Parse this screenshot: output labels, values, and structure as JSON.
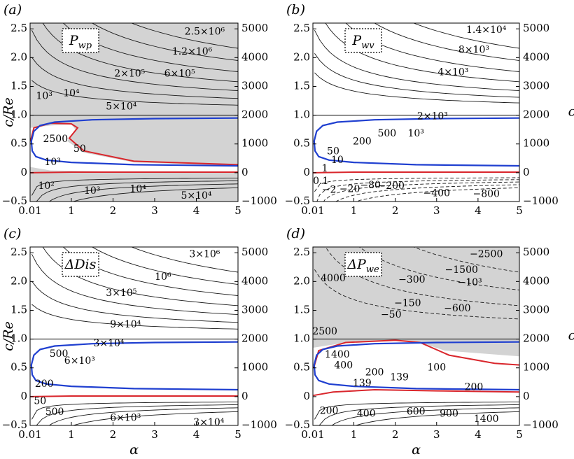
{
  "chart_data": [
    {
      "type": "contour",
      "panel_label": "(a)",
      "field_label": "P_wp",
      "field_symbol": "P",
      "field_sub": "wp",
      "shaded_background": true,
      "xlabel": "",
      "ylabel": "c/Re",
      "ylabel_right": "",
      "xlim": [
        0.01,
        5
      ],
      "ylim": [
        -0.5,
        2.6
      ],
      "x_ticks": [
        "0.01",
        "1",
        "2",
        "3",
        "4",
        "5"
      ],
      "y_ticks": [
        "−0.5",
        "0",
        "0.5",
        "1.0",
        "1.5",
        "2.0",
        "2.5"
      ],
      "y_ticks_right": [
        "−1000",
        "0",
        "1000",
        "2000",
        "3000",
        "4000",
        "5000"
      ],
      "contour_labels": [
        {
          "text": "2.5×10⁶",
          "x": 4.2,
          "y": 2.45
        },
        {
          "text": "1.2×10⁶",
          "x": 3.9,
          "y": 2.1
        },
        {
          "text": "6×10⁵",
          "x": 3.6,
          "y": 1.72
        },
        {
          "text": "2×10⁵",
          "x": 2.4,
          "y": 1.72
        },
        {
          "text": "5×10⁴",
          "x": 2.2,
          "y": 1.15
        },
        {
          "text": "10⁴",
          "x": 1.0,
          "y": 1.38
        },
        {
          "text": "10³",
          "x": 0.35,
          "y": 1.33
        },
        {
          "text": "2500",
          "x": 0.62,
          "y": 0.58
        },
        {
          "text": "50",
          "x": 1.2,
          "y": 0.41
        },
        {
          "text": "10³",
          "x": 0.55,
          "y": 0.18
        },
        {
          "text": "10²",
          "x": 0.4,
          "y": -0.23
        },
        {
          "text": "10³",
          "x": 1.5,
          "y": -0.32
        },
        {
          "text": "10⁴",
          "x": 2.6,
          "y": -0.29
        },
        {
          "text": "5×10⁴",
          "x": 4.0,
          "y": -0.4
        }
      ]
    },
    {
      "type": "contour",
      "panel_label": "(b)",
      "field_label": "P_wv",
      "field_symbol": "P",
      "field_sub": "wv",
      "shaded_background": false,
      "xlabel": "",
      "ylabel": "",
      "ylabel_right": "c",
      "xlim": [
        0.01,
        5
      ],
      "ylim": [
        -0.5,
        2.6
      ],
      "x_ticks": [
        "0.01",
        "1",
        "2",
        "3",
        "4",
        "5"
      ],
      "y_ticks": [
        "−0.5",
        "0",
        "0.5",
        "1.0",
        "1.5",
        "2.0",
        "2.5"
      ],
      "y_ticks_right": [
        "−1000",
        "0",
        "1000",
        "2000",
        "3000",
        "4000",
        "5000"
      ],
      "contour_labels": [
        {
          "text": "1.4×10⁴",
          "x": 4.2,
          "y": 2.48
        },
        {
          "text": "8×10³",
          "x": 3.9,
          "y": 2.13
        },
        {
          "text": "4×10³",
          "x": 3.4,
          "y": 1.74
        },
        {
          "text": "2×10³",
          "x": 2.9,
          "y": 0.98
        },
        {
          "text": "500",
          "x": 1.8,
          "y": 0.68
        },
        {
          "text": "10³",
          "x": 2.5,
          "y": 0.68
        },
        {
          "text": "200",
          "x": 1.2,
          "y": 0.54
        },
        {
          "text": "50",
          "x": 0.5,
          "y": 0.37
        },
        {
          "text": "10",
          "x": 0.6,
          "y": 0.22
        },
        {
          "text": "1",
          "x": 0.3,
          "y": 0.07
        },
        {
          "text": "0.1",
          "x": 0.2,
          "y": -0.15
        },
        {
          "text": "−2",
          "x": 0.4,
          "y": -0.3
        },
        {
          "text": "−20",
          "x": 0.9,
          "y": -0.29
        },
        {
          "text": "−80",
          "x": 1.4,
          "y": -0.22
        },
        {
          "text": "−200",
          "x": 1.9,
          "y": -0.23
        },
        {
          "text": "−400",
          "x": 3.0,
          "y": -0.36
        },
        {
          "text": "−800",
          "x": 4.2,
          "y": -0.37
        }
      ]
    },
    {
      "type": "contour",
      "panel_label": "(c)",
      "field_label": "ΔDis",
      "field_symbol": "ΔDis",
      "field_sub": "",
      "shaded_background": false,
      "xlabel": "α",
      "ylabel": "c/Re",
      "ylabel_right": "",
      "xlim": [
        0.01,
        5
      ],
      "ylim": [
        -0.5,
        2.6
      ],
      "x_ticks": [
        "0.01",
        "1",
        "2",
        "3",
        "4",
        "5"
      ],
      "y_ticks": [
        "−0.5",
        "0",
        "0.5",
        "1.0",
        "1.5",
        "2.0",
        "2.5"
      ],
      "y_ticks_right": [
        "−1000",
        "0",
        "1000",
        "2000",
        "3000",
        "4000",
        "5000"
      ],
      "contour_labels": [
        {
          "text": "3×10⁶",
          "x": 4.2,
          "y": 2.47
        },
        {
          "text": "10⁶",
          "x": 3.2,
          "y": 2.08
        },
        {
          "text": "3×10⁵",
          "x": 2.2,
          "y": 1.8
        },
        {
          "text": "9×10⁴",
          "x": 2.3,
          "y": 1.25
        },
        {
          "text": "3×10⁴",
          "x": 1.9,
          "y": 0.92
        },
        {
          "text": "6×10³",
          "x": 1.2,
          "y": 0.62
        },
        {
          "text": "500",
          "x": 0.7,
          "y": 0.74
        },
        {
          "text": "200",
          "x": 0.35,
          "y": 0.22
        },
        {
          "text": "50",
          "x": 0.25,
          "y": -0.08
        },
        {
          "text": "500",
          "x": 0.6,
          "y": -0.27
        },
        {
          "text": "6×10³",
          "x": 2.3,
          "y": -0.37
        },
        {
          "text": "3×10⁴",
          "x": 4.3,
          "y": -0.45
        }
      ]
    },
    {
      "type": "contour",
      "panel_label": "(d)",
      "field_label": "ΔP_we",
      "field_symbol": "ΔP",
      "field_sub": "we",
      "shaded_background": true,
      "xlabel": "α",
      "ylabel": "",
      "ylabel_right": "c",
      "xlim": [
        0.01,
        5
      ],
      "ylim": [
        -0.5,
        2.6
      ],
      "x_ticks": [
        "0.01",
        "1",
        "2",
        "3",
        "4",
        "5"
      ],
      "y_ticks": [
        "−0.5",
        "0",
        "0.5",
        "1.0",
        "1.5",
        "2.0",
        "2.5"
      ],
      "y_ticks_right": [
        "−1000",
        "0",
        "1000",
        "2000",
        "3000",
        "4000",
        "5000"
      ],
      "contour_labels": [
        {
          "text": "−2500",
          "x": 4.2,
          "y": 2.47
        },
        {
          "text": "−1500",
          "x": 3.6,
          "y": 2.2
        },
        {
          "text": "−10³",
          "x": 3.8,
          "y": 1.98
        },
        {
          "text": "−300",
          "x": 2.4,
          "y": 2.03
        },
        {
          "text": "−150",
          "x": 2.3,
          "y": 1.62
        },
        {
          "text": "−600",
          "x": 3.5,
          "y": 1.53
        },
        {
          "text": "−50",
          "x": 1.9,
          "y": 1.42
        },
        {
          "text": "4000",
          "x": 0.5,
          "y": 2.05
        },
        {
          "text": "2500",
          "x": 0.3,
          "y": 1.13
        },
        {
          "text": "1400",
          "x": 0.6,
          "y": 0.73
        },
        {
          "text": "400",
          "x": 0.75,
          "y": 0.54
        },
        {
          "text": "200",
          "x": 1.5,
          "y": 0.42
        },
        {
          "text": "139",
          "x": 2.1,
          "y": 0.33
        },
        {
          "text": "139",
          "x": 1.2,
          "y": 0.23
        },
        {
          "text": "100",
          "x": 3.0,
          "y": 0.5
        },
        {
          "text": "200",
          "x": 3.9,
          "y": 0.16
        },
        {
          "text": "200",
          "x": 0.4,
          "y": -0.25
        },
        {
          "text": "400",
          "x": 1.3,
          "y": -0.3
        },
        {
          "text": "600",
          "x": 2.5,
          "y": -0.26
        },
        {
          "text": "900",
          "x": 3.3,
          "y": -0.3
        },
        {
          "text": "1400",
          "x": 4.2,
          "y": -0.39
        }
      ]
    }
  ],
  "colors": {
    "shade": "#d3d3d3",
    "contour": "#1a1a1a",
    "neutral_curve": "#1f3fd0",
    "zero_contour": "#d9262c"
  }
}
